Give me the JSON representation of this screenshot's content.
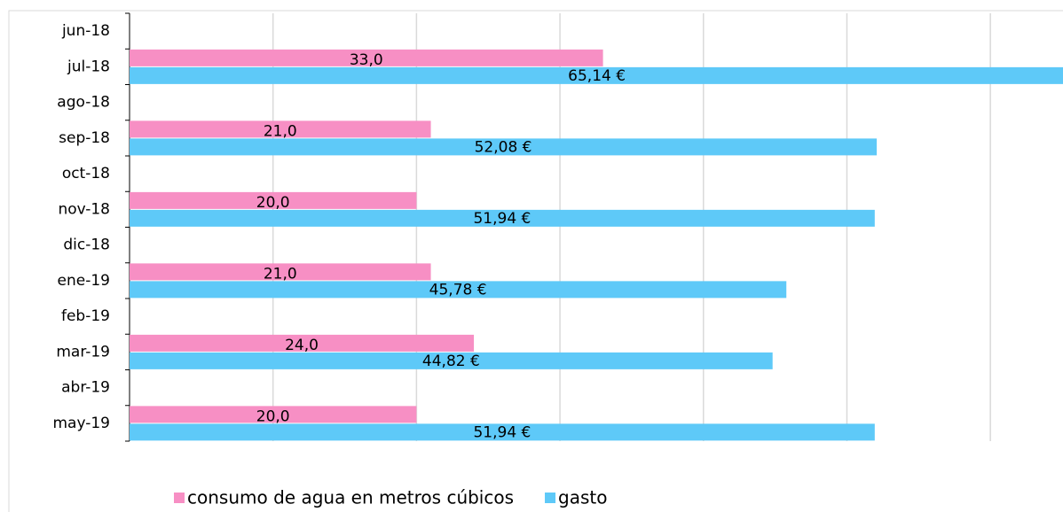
{
  "chart_data": {
    "type": "bar",
    "orientation": "horizontal",
    "categories": [
      "jun-18",
      "jul-18",
      "ago-18",
      "sep-18",
      "oct-18",
      "nov-18",
      "dic-18",
      "ene-19",
      "feb-19",
      "mar-19",
      "abr-19",
      "may-19"
    ],
    "series": [
      {
        "name": "consumo de agua en metros cúbicos",
        "color": "#f78fc4",
        "values": [
          null,
          33.0,
          null,
          21.0,
          null,
          20.0,
          null,
          21.0,
          null,
          24.0,
          null,
          20.0
        ],
        "value_labels": [
          null,
          "33,0",
          null,
          "21,0",
          null,
          "20,0",
          null,
          "21,0",
          null,
          "24,0",
          null,
          "20,0"
        ]
      },
      {
        "name": "gasto",
        "color": "#5ec9f8",
        "values": [
          null,
          65.14,
          null,
          52.08,
          null,
          51.94,
          null,
          45.78,
          null,
          44.82,
          null,
          51.94
        ],
        "value_labels": [
          null,
          "65,14 €",
          null,
          "52,08 €",
          null,
          "51,94 €",
          null,
          "45,78 €",
          null,
          "44,82 €",
          null,
          "51,94 €"
        ]
      }
    ],
    "xlim": [
      0,
      65
    ],
    "xticks": [
      10,
      20,
      30,
      40,
      50,
      60
    ],
    "grid": true,
    "legend": "bottom"
  }
}
